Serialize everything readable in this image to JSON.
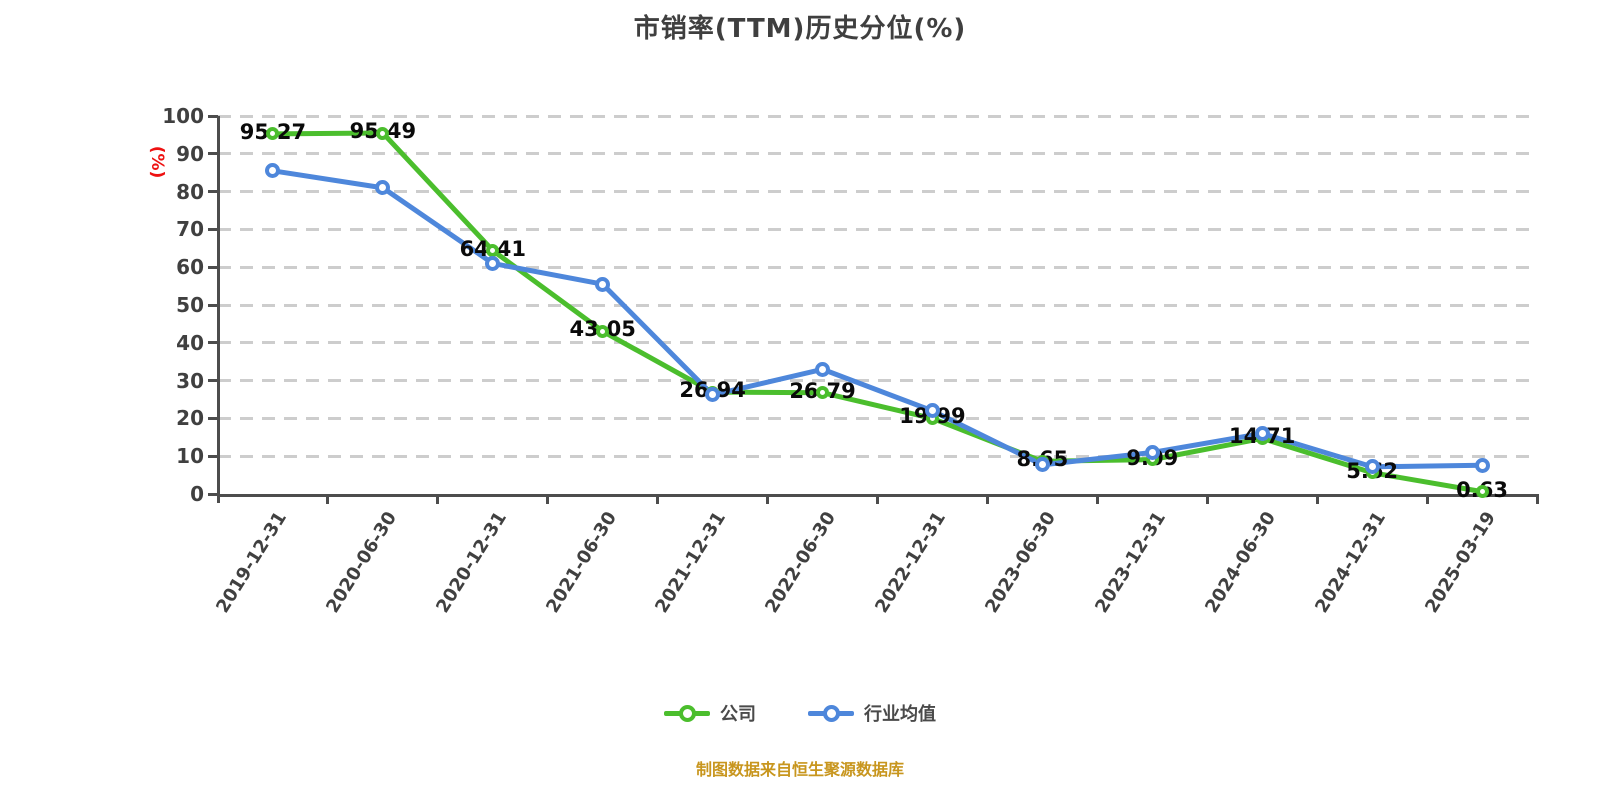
{
  "title": "市销率(TTM)历史分位(%)",
  "y_axis_unit": "(%)",
  "source_note": "制图数据来自恒生聚源数据库",
  "colors": {
    "company_green": "#4bbe2d",
    "industry_blue": "#4e87db",
    "grid": "#cdcdcd",
    "axis": "#4d4d4d",
    "title_text": "#3f3f3f",
    "tick_text": "#404040",
    "value_label_text": "#0a0a0a",
    "unit_red": "#ee1111",
    "source_orange": "#c8961e"
  },
  "legend": {
    "items": [
      {
        "label": "公司",
        "color": "#4bbe2d"
      },
      {
        "label": "行业均值",
        "color": "#4e87db"
      }
    ]
  },
  "chart_data": {
    "type": "line",
    "categories": [
      "2019-12-31",
      "2020-06-30",
      "2020-12-31",
      "2021-06-30",
      "2021-12-31",
      "2022-06-30",
      "2022-12-31",
      "2023-06-30",
      "2023-12-31",
      "2024-06-30",
      "2024-12-31",
      "2025-03-19"
    ],
    "series": [
      {
        "name": "公司",
        "color": "#4bbe2d",
        "values": [
          95.27,
          95.49,
          64.41,
          43.05,
          26.94,
          26.79,
          19.99,
          8.65,
          9.09,
          14.71,
          5.62,
          0.63
        ],
        "labels_shown": true
      },
      {
        "name": "行业均值",
        "color": "#4e87db",
        "values": [
          85.5,
          81,
          61,
          55.5,
          26.2,
          33,
          22,
          7.7,
          11,
          16,
          7.2,
          7.6
        ],
        "labels_shown": false,
        "values_estimated": true
      }
    ],
    "ylabel": "(%)",
    "ylim": [
      0,
      100
    ],
    "y_ticks": [
      0,
      10,
      20,
      30,
      40,
      50,
      60,
      70,
      80,
      90,
      100
    ],
    "grid": "dashed-horizontal",
    "legend_position": "bottom"
  }
}
